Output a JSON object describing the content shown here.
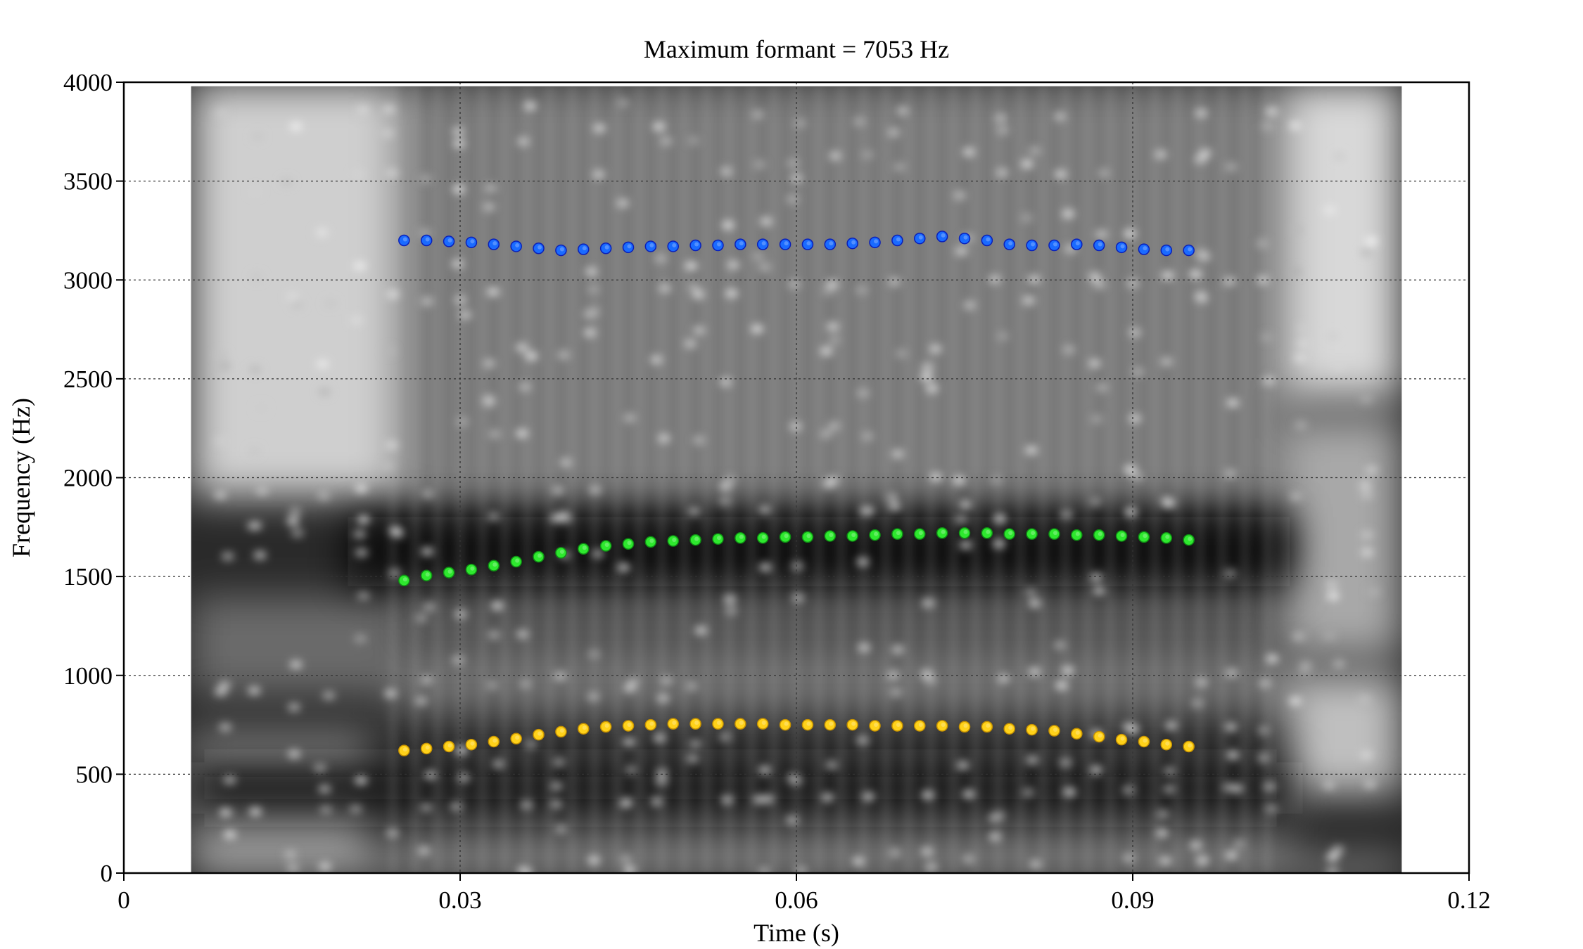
{
  "chart_data": {
    "type": "scatter",
    "title": "Maximum formant  =  7053 Hz",
    "xlabel": "Time (s)",
    "ylabel": "Frequency (Hz)",
    "xlim": [
      0,
      0.12
    ],
    "ylim": [
      0,
      4000
    ],
    "x_ticks": [
      0,
      0.03,
      0.06,
      0.09,
      0.12
    ],
    "x_tick_labels": [
      "0",
      "0.03",
      "0.06",
      "0.09",
      "0.12"
    ],
    "y_ticks": [
      0,
      500,
      1000,
      1500,
      2000,
      2500,
      3000,
      3500,
      4000
    ],
    "y_tick_labels": [
      "0",
      "500",
      "1000",
      "1500",
      "2000",
      "2500",
      "3000",
      "3500",
      "4000"
    ],
    "grid": true,
    "grid_style": "dotted",
    "background": "grayscale spectrogram (0.006–0.114 s)",
    "spectrogram_extent": {
      "x": [
        0.006,
        0.114
      ],
      "y": [
        0,
        3980
      ]
    },
    "x": [
      0.025,
      0.027,
      0.029,
      0.031,
      0.033,
      0.035,
      0.037,
      0.039,
      0.041,
      0.043,
      0.045,
      0.047,
      0.049,
      0.051,
      0.053,
      0.055,
      0.057,
      0.059,
      0.061,
      0.063,
      0.065,
      0.067,
      0.069,
      0.071,
      0.073,
      0.075,
      0.077,
      0.079,
      0.081,
      0.083,
      0.085,
      0.087,
      0.089,
      0.091,
      0.093,
      0.095
    ],
    "series": [
      {
        "color": "#1a6bff",
        "dark_color": "#0a1fb8",
        "values": [
          3200,
          3200,
          3195,
          3190,
          3180,
          3170,
          3160,
          3150,
          3155,
          3160,
          3165,
          3170,
          3170,
          3175,
          3175,
          3180,
          3180,
          3180,
          3180,
          3180,
          3185,
          3190,
          3200,
          3210,
          3220,
          3210,
          3200,
          3180,
          3175,
          3175,
          3180,
          3175,
          3165,
          3155,
          3150,
          3150
        ]
      },
      {
        "color": "#2ee82e",
        "dark_color": "#0f8f14",
        "values": [
          1480,
          1505,
          1520,
          1535,
          1555,
          1575,
          1600,
          1620,
          1640,
          1655,
          1665,
          1675,
          1680,
          1685,
          1690,
          1695,
          1695,
          1700,
          1700,
          1705,
          1705,
          1710,
          1715,
          1715,
          1720,
          1720,
          1720,
          1715,
          1715,
          1715,
          1710,
          1710,
          1705,
          1700,
          1695,
          1685
        ]
      },
      {
        "color": "#ffd21a",
        "dark_color": "#c79200",
        "values": [
          620,
          630,
          640,
          650,
          665,
          680,
          700,
          715,
          730,
          740,
          745,
          750,
          755,
          755,
          755,
          755,
          755,
          750,
          750,
          750,
          750,
          745,
          745,
          745,
          745,
          740,
          740,
          730,
          725,
          720,
          705,
          690,
          675,
          665,
          650,
          640
        ]
      }
    ]
  }
}
